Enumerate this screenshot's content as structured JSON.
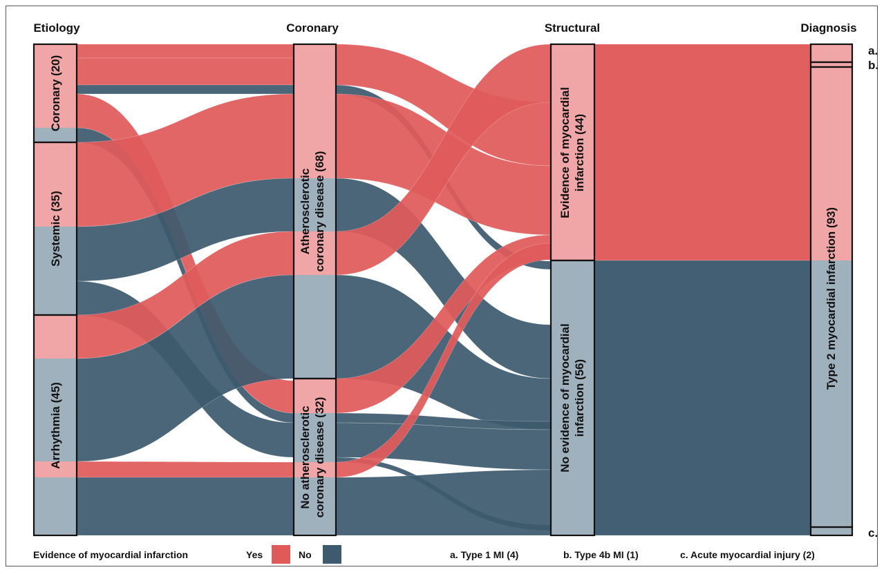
{
  "colors": {
    "yes": "#e05a5a",
    "no": "#3d5a6e",
    "yes_node": "#f0a6a6",
    "no_node": "#9eb1bd"
  },
  "columns": [
    "Etiology",
    "Coronary",
    "Structural",
    "Diagnosis"
  ],
  "nodes": {
    "coronary": "Coronary (20)",
    "systemic": "Systemic (35)",
    "arrhythmia": "Arrhythmia (45)",
    "athero_line1": "Atherosclerotic",
    "athero_line2": "coronary disease (68)",
    "noathero_line1": "No atherosclerotic",
    "noathero_line2": "coronary disease (32)",
    "evid_line1": "Evidence of myocardial",
    "evid_line2": "infarction (44)",
    "noevid_line1": "No evidence of myocardial",
    "noevid_line2": "infarction (56)",
    "type2": "Type 2 myocardial infarction (93)",
    "a": "a.",
    "b": "b.",
    "c": "c."
  },
  "legend": {
    "title": "Evidence of myocardial infarction",
    "yes": "Yes",
    "no": "No",
    "a": "a. Type 1 MI (4)",
    "b": "b. Type 4b MI (1)",
    "c": "c. Acute myocardial injury (2)"
  }
}
